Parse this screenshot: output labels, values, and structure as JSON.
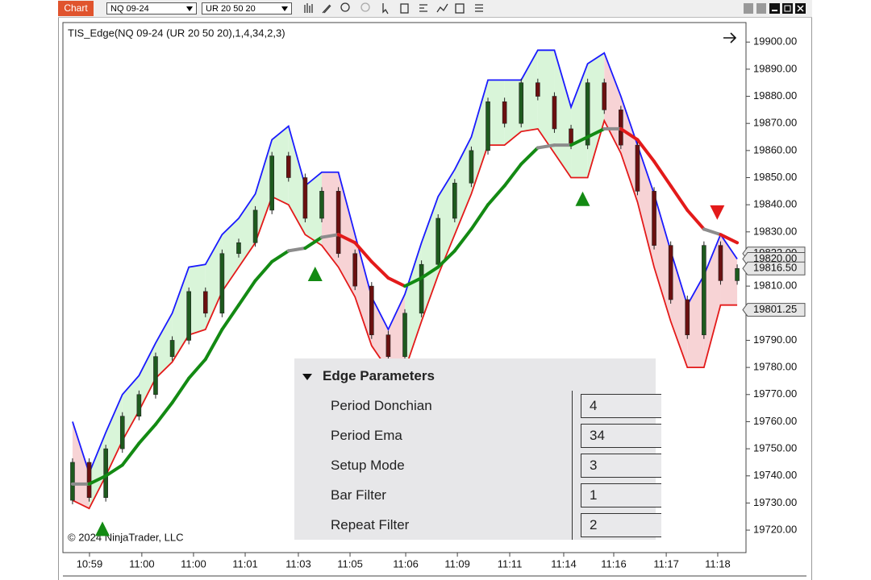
{
  "toolbar": {
    "button": "Chart",
    "instrument": "NQ 09-24",
    "bar_type": "UR 20 50 20"
  },
  "chart_data": {
    "type": "candlestick",
    "title": "TIS_Edge(NQ 09-24 (UR 20 50 20),1,4,34,2,3)",
    "copyright": "© 2024 NinjaTrader, LLC",
    "close": [
      19745,
      19732,
      19750,
      19762,
      19770,
      19784,
      19790,
      19808,
      19800,
      19822,
      19826,
      19838,
      19858,
      19850,
      19835,
      19845,
      19822,
      19810,
      19792,
      19784,
      19800,
      19818,
      19835,
      19848,
      19860,
      19878,
      19870,
      19885,
      19880,
      19868,
      19862,
      19885,
      19875,
      19862,
      19845,
      19825,
      19805,
      19792,
      19825,
      19812,
      19816.5
    ],
    "upper": [
      19760,
      19741,
      19756,
      19770,
      19777,
      19789,
      19800,
      19817,
      19818,
      19829,
      19835,
      19844,
      19864,
      19869,
      19847,
      19852,
      19852,
      19829,
      19806,
      19794,
      19807,
      19826,
      19843,
      19853,
      19865,
      19886,
      19886,
      19886,
      19897,
      19897,
      19876,
      19892,
      19896,
      19880,
      19862,
      19844,
      19823,
      19803,
      19814,
      19829,
      19820
    ],
    "lower": [
      19731,
      19728,
      19740,
      19753,
      19764,
      19776,
      19782,
      19792,
      19794,
      19808,
      19817,
      19826,
      19843,
      19840,
      19829,
      19825,
      19817,
      19806,
      19788,
      19779,
      19779,
      19797,
      19814,
      19829,
      19844,
      19862,
      19862,
      19867,
      19868,
      19859,
      19850,
      19850,
      19871,
      19859,
      19841,
      19817,
      19797,
      19780,
      19780,
      19803,
      19803
    ],
    "ema": [
      19737,
      19737,
      19740,
      19744,
      19752,
      19759,
      19767,
      19776,
      19783,
      19794,
      19803,
      19812,
      19819,
      19823,
      19824,
      19828,
      19829,
      19826,
      19819,
      19813,
      19810,
      19813,
      19817,
      19823,
      19831,
      19840,
      19847,
      19855,
      19861,
      19862,
      19862,
      19865,
      19868,
      19868,
      19864,
      19856,
      19847,
      19838,
      19831,
      19829,
      19826
    ],
    "colors": {
      "upper": "#1a1aff",
      "lower": "#e31a1a",
      "ema_up": "#138a13",
      "ema_down": "#e31a1a",
      "ema_flat": "#8c8c8c",
      "fill_up": "#d9f5d9",
      "fill_down": "#f7d3d5",
      "candle_up": "#1e5a1e",
      "candle_down": "#6b1010"
    },
    "signals": [
      {
        "direction": "up",
        "x": 1.8,
        "y": 19720.5
      },
      {
        "direction": "up",
        "x": 14.6,
        "y": 19814.5
      },
      {
        "direction": "up",
        "x": 30.7,
        "y": 19842.2
      },
      {
        "direction": "down",
        "x": 38.8,
        "y": 19837.1
      }
    ],
    "xlim": [
      -0.58,
      40.53
    ],
    "ylim": [
      19711.7,
      19906.9
    ],
    "xticks": [
      {
        "value": 1.02,
        "label": "10:59"
      },
      {
        "value": 4.17,
        "label": "11:00"
      },
      {
        "value": 7.28,
        "label": "11:00"
      },
      {
        "value": 10.39,
        "label": "11:01"
      },
      {
        "value": 13.59,
        "label": "11:03"
      },
      {
        "value": 16.7,
        "label": "11:05"
      },
      {
        "value": 20.05,
        "label": "11:06"
      },
      {
        "value": 23.16,
        "label": "11:09"
      },
      {
        "value": 26.31,
        "label": "11:11"
      },
      {
        "value": 29.56,
        "label": "11:14"
      },
      {
        "value": 32.57,
        "label": "11:16"
      },
      {
        "value": 35.73,
        "label": "11:17"
      },
      {
        "value": 38.83,
        "label": "11:18"
      }
    ],
    "yticks": [
      {
        "value": 19900,
        "label": "19900.00"
      },
      {
        "value": 19890,
        "label": "19890.00"
      },
      {
        "value": 19880,
        "label": "19880.00"
      },
      {
        "value": 19870,
        "label": "19870.00"
      },
      {
        "value": 19860,
        "label": "19860.00"
      },
      {
        "value": 19850,
        "label": "19850.00"
      },
      {
        "value": 19840,
        "label": "19840.00"
      },
      {
        "value": 19830,
        "label": "19830.00"
      },
      {
        "value": 19820,
        "label": "19820.00"
      },
      {
        "value": 19810,
        "label": "19810.00"
      },
      {
        "value": 19800,
        "label": "19800.00"
      },
      {
        "value": 19790,
        "label": "19790.00"
      },
      {
        "value": 19780,
        "label": "19780.00"
      },
      {
        "value": 19770,
        "label": "19770.00"
      },
      {
        "value": 19760,
        "label": "19760.00"
      },
      {
        "value": 19750,
        "label": "19750.00"
      },
      {
        "value": 19740,
        "label": "19740.00"
      },
      {
        "value": 19730,
        "label": "19730.00"
      },
      {
        "value": 19720,
        "label": "19720.00"
      }
    ],
    "price_labels": [
      {
        "value": 19822,
        "label": "19822.00"
      },
      {
        "value": 19820,
        "label": "19820.00"
      },
      {
        "value": 19816.5,
        "label": "19816.50"
      },
      {
        "value": 19801.25,
        "label": "19801.25"
      }
    ]
  },
  "panel": {
    "title": "Edge Parameters",
    "rows": [
      [
        "Period Donchian",
        4
      ],
      [
        "Period Ema",
        34
      ],
      [
        "Setup Mode",
        3
      ],
      [
        "Bar Filter",
        1
      ],
      [
        "Repeat Filter",
        2
      ]
    ]
  }
}
